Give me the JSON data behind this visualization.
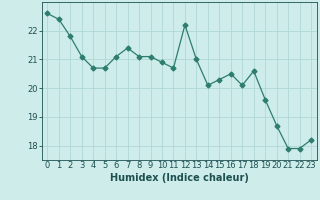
{
  "x": [
    0,
    1,
    2,
    3,
    4,
    5,
    6,
    7,
    8,
    9,
    10,
    11,
    12,
    13,
    14,
    15,
    16,
    17,
    18,
    19,
    20,
    21,
    22,
    23
  ],
  "y": [
    22.6,
    22.4,
    21.8,
    21.1,
    20.7,
    20.7,
    21.1,
    21.4,
    21.1,
    21.1,
    20.9,
    20.7,
    22.2,
    21.0,
    20.1,
    20.3,
    20.5,
    20.1,
    20.6,
    19.6,
    18.7,
    17.9,
    17.9,
    18.2
  ],
  "line_color": "#2e7d6e",
  "marker": "D",
  "marker_size": 2.5,
  "bg_color": "#cdecea",
  "grid_color": "#b0d8d4",
  "xlabel": "Humidex (Indice chaleur)",
  "ylim": [
    17.5,
    23.0
  ],
  "xlim": [
    -0.5,
    23.5
  ],
  "yticks": [
    18,
    19,
    20,
    21,
    22
  ],
  "xtick_labels": [
    "0",
    "1",
    "2",
    "3",
    "4",
    "5",
    "6",
    "7",
    "8",
    "9",
    "10",
    "11",
    "12",
    "13",
    "14",
    "15",
    "16",
    "17",
    "18",
    "19",
    "20",
    "21",
    "22",
    "23"
  ],
  "font_color": "#1e5050",
  "label_fontsize": 7.0,
  "tick_fontsize": 6.0
}
